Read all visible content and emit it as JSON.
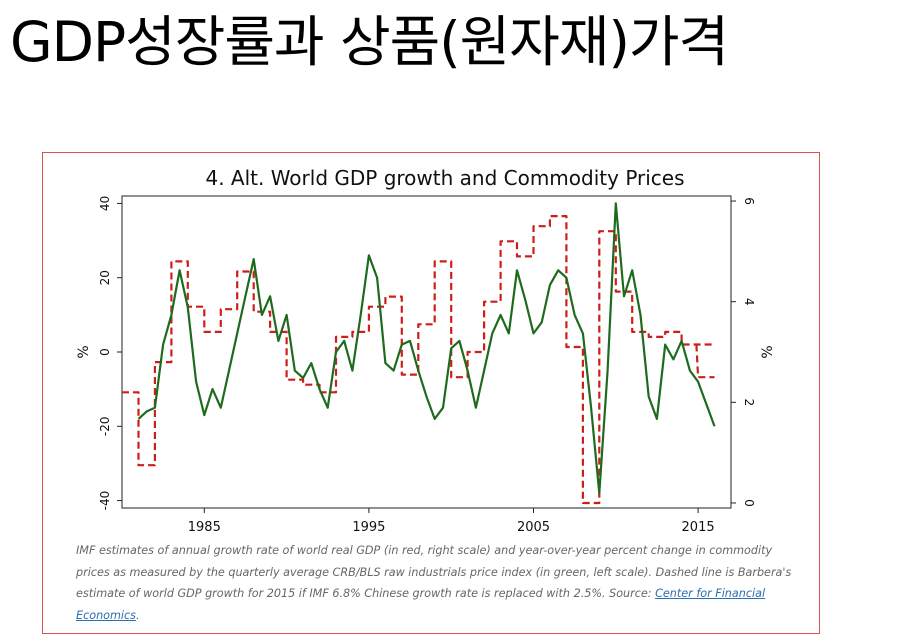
{
  "slide": {
    "title": "GDP성장률과 상품(원자재)가격"
  },
  "caption": {
    "text": "IMF estimates of annual growth rate of world real GDP (in red, right scale) and year-over-year percent change in commodity prices as measured by the quarterly average CRB/BLS raw industrials price index (in green, left scale). Dashed line is Barbera's estimate of world GDP growth for 2015 if IMF 6.8% Chinese growth rate is replaced with 2.5%. Source: ",
    "source_link": "Center for Financial Economics",
    "tail": "."
  },
  "colors": {
    "gdp": "#cc1f1a",
    "commodity": "#1e6b1e",
    "frame": "#d9534f",
    "caption": "#666666"
  },
  "chart_data": {
    "type": "line",
    "title": "4. Alt. World GDP growth and Commodity Prices",
    "xlim": [
      1980,
      2017
    ],
    "x_ticks": [
      1985,
      1995,
      2005,
      2015
    ],
    "left_axis": {
      "label": "%",
      "ylim": [
        -42,
        42
      ],
      "ticks": [
        40,
        20,
        0,
        -20,
        -40
      ]
    },
    "right_axis": {
      "label": "%",
      "ylim": [
        -0.1,
        6.1
      ],
      "ticks": [
        6,
        4,
        2,
        0
      ]
    },
    "series": [
      {
        "axis": "right",
        "style": "step",
        "points": [
          [
            1980.0,
            2.2
          ],
          [
            1981.0,
            2.2
          ],
          [
            1981.0,
            0.75
          ],
          [
            1982.0,
            0.75
          ],
          [
            1982.0,
            2.8
          ],
          [
            1983.0,
            2.8
          ],
          [
            1983.0,
            4.8
          ],
          [
            1984.0,
            4.8
          ],
          [
            1984.0,
            3.9
          ],
          [
            1985.0,
            3.9
          ],
          [
            1985.0,
            3.4
          ],
          [
            1986.0,
            3.4
          ],
          [
            1986.0,
            3.85
          ],
          [
            1987.0,
            3.85
          ],
          [
            1987.0,
            4.6
          ],
          [
            1988.0,
            4.6
          ],
          [
            1988.0,
            3.8
          ],
          [
            1989.0,
            3.8
          ],
          [
            1989.0,
            3.4
          ],
          [
            1990.0,
            3.4
          ],
          [
            1990.0,
            2.45
          ],
          [
            1991.0,
            2.45
          ],
          [
            1991.0,
            2.35
          ],
          [
            1992.0,
            2.35
          ],
          [
            1992.0,
            2.2
          ],
          [
            1993.0,
            2.2
          ],
          [
            1993.0,
            3.3
          ],
          [
            1994.0,
            3.3
          ],
          [
            1994.0,
            3.4
          ],
          [
            1995.0,
            3.4
          ],
          [
            1995.0,
            3.9
          ],
          [
            1996.0,
            3.9
          ],
          [
            1996.0,
            4.1
          ],
          [
            1997.0,
            4.1
          ],
          [
            1997.0,
            2.55
          ],
          [
            1998.0,
            2.55
          ],
          [
            1998.0,
            3.55
          ],
          [
            1999.0,
            3.55
          ],
          [
            1999.0,
            4.8
          ],
          [
            2000.0,
            4.8
          ],
          [
            2000.0,
            2.5
          ],
          [
            2001.0,
            2.5
          ],
          [
            2001.0,
            3.0
          ],
          [
            2002.0,
            3.0
          ],
          [
            2002.0,
            4.0
          ],
          [
            2003.0,
            4.0
          ],
          [
            2003.0,
            5.2
          ],
          [
            2004.0,
            5.2
          ],
          [
            2004.0,
            4.9
          ],
          [
            2005.0,
            4.9
          ],
          [
            2005.0,
            5.5
          ],
          [
            2006.0,
            5.5
          ],
          [
            2006.0,
            5.7
          ],
          [
            2007.0,
            5.7
          ],
          [
            2007.0,
            3.1
          ],
          [
            2008.0,
            3.1
          ],
          [
            2008.0,
            0.0
          ],
          [
            2009.0,
            0.0
          ],
          [
            2009.0,
            5.4
          ],
          [
            2010.0,
            5.4
          ],
          [
            2010.0,
            4.2
          ],
          [
            2011.0,
            4.2
          ],
          [
            2011.0,
            3.4
          ],
          [
            2012.0,
            3.4
          ],
          [
            2012.0,
            3.3
          ],
          [
            2013.0,
            3.3
          ],
          [
            2013.0,
            3.4
          ],
          [
            2014.0,
            3.4
          ],
          [
            2014.0,
            3.15
          ],
          [
            2015.0,
            3.15
          ],
          [
            2015.0,
            3.15
          ],
          [
            2016.0,
            3.15
          ]
        ]
      },
      {
        "axis": "right",
        "style": "dashed-estimate",
        "points": [
          [
            2014.9,
            3.15
          ],
          [
            2015.0,
            2.5
          ],
          [
            2016.0,
            2.5
          ]
        ]
      },
      {
        "axis": "left",
        "style": "solid",
        "points": [
          [
            1981.0,
            -18
          ],
          [
            1981.5,
            -16
          ],
          [
            1982.0,
            -15
          ],
          [
            1982.5,
            2
          ],
          [
            1983.0,
            10
          ],
          [
            1983.5,
            22
          ],
          [
            1984.0,
            12
          ],
          [
            1984.5,
            -8
          ],
          [
            1985.0,
            -17
          ],
          [
            1985.5,
            -10
          ],
          [
            1986.0,
            -15
          ],
          [
            1986.5,
            -5
          ],
          [
            1987.0,
            5
          ],
          [
            1987.5,
            15
          ],
          [
            1988.0,
            25
          ],
          [
            1988.5,
            10
          ],
          [
            1989.0,
            15
          ],
          [
            1989.5,
            3
          ],
          [
            1990.0,
            10
          ],
          [
            1990.5,
            -5
          ],
          [
            1991.0,
            -7
          ],
          [
            1991.5,
            -3
          ],
          [
            1992.0,
            -10
          ],
          [
            1992.5,
            -15
          ],
          [
            1993.0,
            0
          ],
          [
            1993.5,
            3
          ],
          [
            1994.0,
            -5
          ],
          [
            1994.5,
            10
          ],
          [
            1995.0,
            26
          ],
          [
            1995.5,
            20
          ],
          [
            1996.0,
            -3
          ],
          [
            1996.5,
            -5
          ],
          [
            1997.0,
            2
          ],
          [
            1997.5,
            3
          ],
          [
            1998.0,
            -5
          ],
          [
            1998.5,
            -12
          ],
          [
            1999.0,
            -18
          ],
          [
            1999.5,
            -15
          ],
          [
            2000.0,
            1
          ],
          [
            2000.5,
            3
          ],
          [
            2001.0,
            -5
          ],
          [
            2001.5,
            -15
          ],
          [
            2002.0,
            -5
          ],
          [
            2002.5,
            5
          ],
          [
            2003.0,
            10
          ],
          [
            2003.5,
            5
          ],
          [
            2004.0,
            22
          ],
          [
            2004.5,
            14
          ],
          [
            2005.0,
            5
          ],
          [
            2005.5,
            8
          ],
          [
            2006.0,
            18
          ],
          [
            2006.5,
            22
          ],
          [
            2007.0,
            20
          ],
          [
            2007.5,
            10
          ],
          [
            2008.0,
            5
          ],
          [
            2008.5,
            -15
          ],
          [
            2009.0,
            -38
          ],
          [
            2009.5,
            -5
          ],
          [
            2010.0,
            40
          ],
          [
            2010.5,
            15
          ],
          [
            2011.0,
            22
          ],
          [
            2011.5,
            10
          ],
          [
            2012.0,
            -12
          ],
          [
            2012.5,
            -18
          ],
          [
            2013.0,
            2
          ],
          [
            2013.5,
            -2
          ],
          [
            2014.0,
            3
          ],
          [
            2014.5,
            -5
          ],
          [
            2015.0,
            -8
          ],
          [
            2015.5,
            -14
          ],
          [
            2016.0,
            -20
          ]
        ]
      }
    ]
  }
}
